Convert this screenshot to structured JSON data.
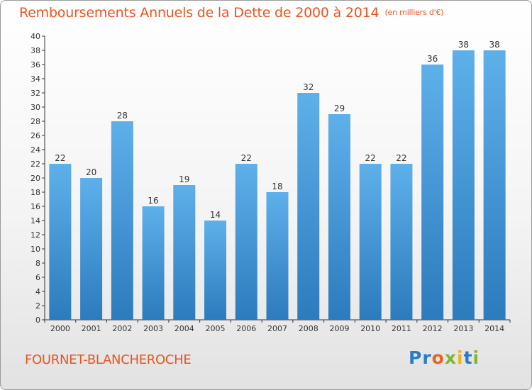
{
  "header": {
    "title": "Remboursements Annuels de la Dette de 2000 à 2014",
    "unit": "(en milliers d'€)"
  },
  "footer": {
    "commune": "FOURNET-BLANCHEROCHE",
    "logo": "Proxiti"
  },
  "colors": {
    "accent": "#e8541f",
    "bar_light": "#5eb0ea",
    "bar_dark": "#2c7bbd"
  },
  "chart_data": {
    "type": "bar",
    "title": "Remboursements Annuels de la Dette de 2000 à 2014",
    "categories": [
      "2000",
      "2001",
      "2002",
      "2003",
      "2004",
      "2005",
      "2006",
      "2007",
      "2008",
      "2009",
      "2010",
      "2011",
      "2012",
      "2013",
      "2014"
    ],
    "values": [
      22,
      20,
      28,
      16,
      19,
      14,
      22,
      18,
      32,
      29,
      22,
      22,
      36,
      38,
      38
    ],
    "ylim": [
      0,
      40
    ],
    "yticks": [
      0,
      2,
      4,
      6,
      8,
      10,
      12,
      14,
      16,
      18,
      20,
      22,
      24,
      26,
      28,
      30,
      32,
      34,
      36,
      38,
      40
    ],
    "grid": false,
    "xlabel": "",
    "ylabel": ""
  }
}
